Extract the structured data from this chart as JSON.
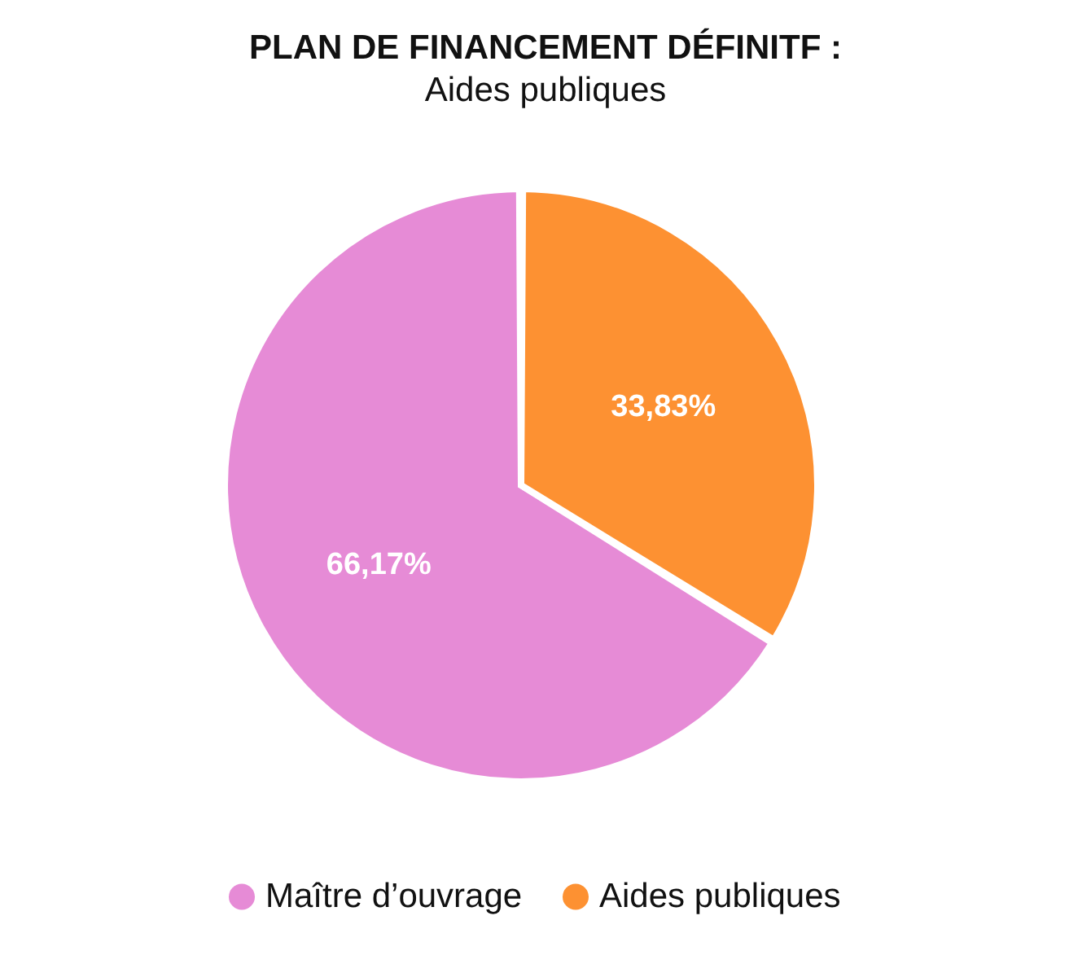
{
  "chart_data": {
    "type": "pie",
    "title": "PLAN DE FINANCEMENT DÉFINITF :",
    "subtitle": "Aides publiques",
    "categories": [
      "Maître d’ouvrage",
      "Aides publiques"
    ],
    "values": [
      66.17,
      33.83
    ],
    "colors": [
      "#e68bd6",
      "#fd9132"
    ],
    "value_labels": [
      "66,17%",
      "33,83%"
    ],
    "legend": "bottom"
  }
}
